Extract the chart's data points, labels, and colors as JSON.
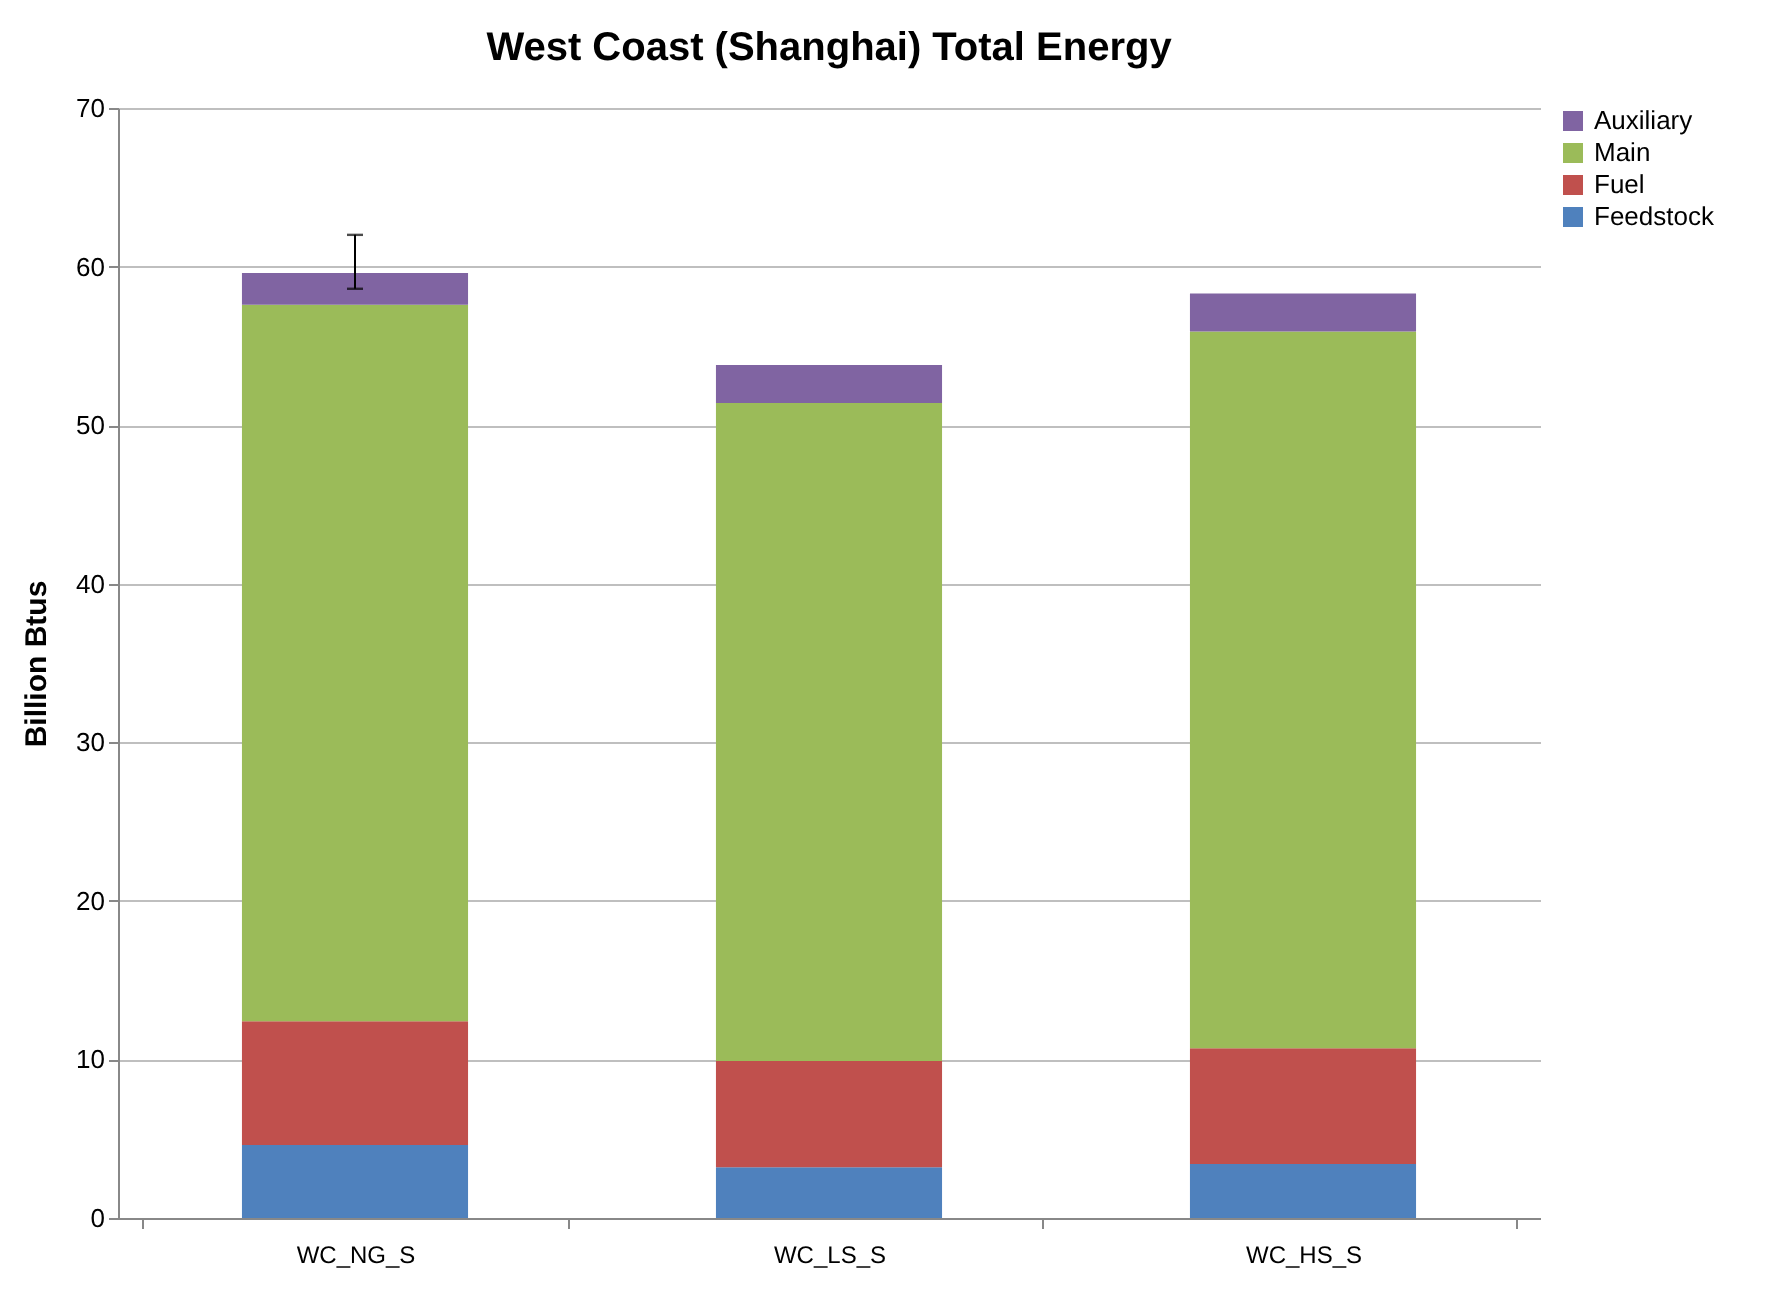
{
  "chart_data": {
    "type": "bar",
    "title": "West Coast (Shanghai) Total Energy",
    "ylabel": "Billion Btus",
    "categories": [
      "WC_NG_S",
      "WC_LS_S",
      "WC_HS_S"
    ],
    "stacked": true,
    "ylim": [
      0,
      70
    ],
    "yticks": [
      0,
      10,
      20,
      30,
      40,
      50,
      60,
      70
    ],
    "grid": "y",
    "legend": "right",
    "series": [
      {
        "name": "Feedstock",
        "color": "#4f81bd",
        "values": [
          4.6,
          3.2,
          3.4
        ]
      },
      {
        "name": "Fuel",
        "color": "#c0504d",
        "values": [
          7.8,
          6.7,
          7.3
        ]
      },
      {
        "name": "Main",
        "color": "#9bbb59",
        "values": [
          45.2,
          41.5,
          45.2
        ]
      },
      {
        "name": "Auxiliary",
        "color": "#8064a2",
        "values": [
          2.0,
          2.4,
          2.4
        ],
        "errors": [
          [
            58.6,
            62.0
          ],
          null,
          null
        ]
      }
    ]
  }
}
